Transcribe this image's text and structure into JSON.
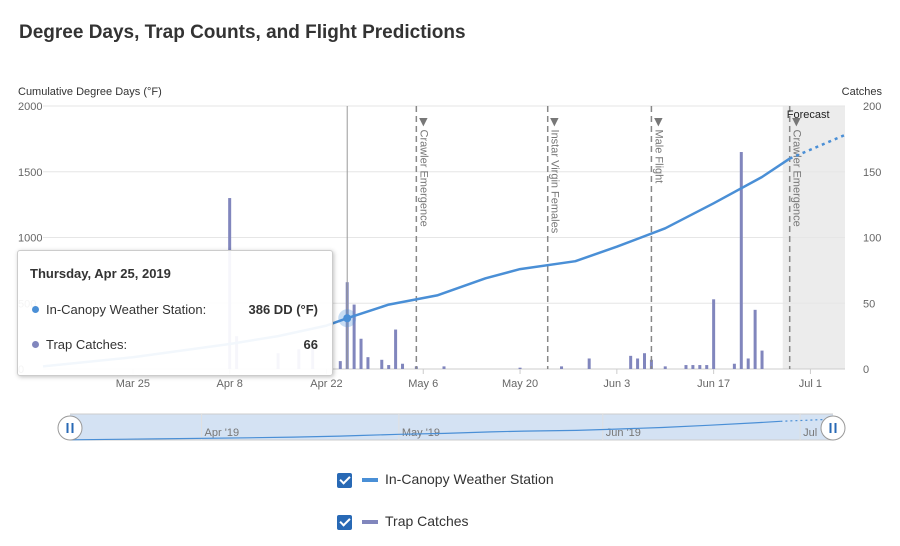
{
  "title": "Degree Days, Trap Counts, and Flight Predictions",
  "colors": {
    "dd_line": "#4a8fd6",
    "bars": "#8186bd",
    "forecast_band": "#ececec",
    "navigator_fill": "#d4e2f3",
    "checkbox": "#2869b5"
  },
  "chart_data": {
    "type": "line+bar",
    "left_axis_label": "Cumulative Degree Days (°F)",
    "right_axis_label": "Catches",
    "left_ylim": [
      0,
      2000
    ],
    "right_ylim": [
      0,
      200
    ],
    "left_ticks": [
      "0",
      "500",
      "1000",
      "1500",
      "2000"
    ],
    "right_ticks": [
      "0",
      "50",
      "100",
      "150",
      "200"
    ],
    "x_range": [
      "2019-03-12",
      "2019-07-06"
    ],
    "x_ticks": [
      {
        "date": "2019-03-25",
        "label": "Mar 25"
      },
      {
        "date": "2019-04-08",
        "label": "Apr 8"
      },
      {
        "date": "2019-04-22",
        "label": "Apr 22"
      },
      {
        "date": "2019-05-06",
        "label": "May 6"
      },
      {
        "date": "2019-05-20",
        "label": "May 20"
      },
      {
        "date": "2019-06-03",
        "label": "Jun 3"
      },
      {
        "date": "2019-06-17",
        "label": "Jun 17"
      },
      {
        "date": "2019-07-01",
        "label": "Jul 1"
      }
    ],
    "series": [
      {
        "name": "In-Canopy Weather Station",
        "kind": "line",
        "points": [
          [
            "2019-03-12",
            20
          ],
          [
            "2019-03-25",
            90
          ],
          [
            "2019-04-08",
            190
          ],
          [
            "2019-04-15",
            250
          ],
          [
            "2019-04-22",
            330
          ],
          [
            "2019-04-25",
            386
          ],
          [
            "2019-05-01",
            490
          ],
          [
            "2019-05-08",
            560
          ],
          [
            "2019-05-15",
            690
          ],
          [
            "2019-05-20",
            760
          ],
          [
            "2019-05-28",
            820
          ],
          [
            "2019-06-03",
            930
          ],
          [
            "2019-06-10",
            1070
          ],
          [
            "2019-06-17",
            1260
          ],
          [
            "2019-06-24",
            1460
          ],
          [
            "2019-06-28",
            1600
          ]
        ],
        "forecast_points": [
          [
            "2019-06-28",
            1600
          ],
          [
            "2019-07-06",
            1780
          ]
        ]
      },
      {
        "name": "Trap Catches",
        "kind": "bar",
        "points": [
          [
            "2019-04-08",
            130
          ],
          [
            "2019-04-09",
            25
          ],
          [
            "2019-04-15",
            12
          ],
          [
            "2019-04-18",
            15
          ],
          [
            "2019-04-20",
            20
          ],
          [
            "2019-04-24",
            6
          ],
          [
            "2019-04-25",
            66
          ],
          [
            "2019-04-26",
            49
          ],
          [
            "2019-04-27",
            23
          ],
          [
            "2019-04-28",
            9
          ],
          [
            "2019-04-30",
            7
          ],
          [
            "2019-05-01",
            3
          ],
          [
            "2019-05-02",
            30
          ],
          [
            "2019-05-03",
            4
          ],
          [
            "2019-05-05",
            2
          ],
          [
            "2019-05-09",
            2
          ],
          [
            "2019-05-20",
            1
          ],
          [
            "2019-05-26",
            2
          ],
          [
            "2019-05-30",
            8
          ],
          [
            "2019-06-05",
            10
          ],
          [
            "2019-06-06",
            8
          ],
          [
            "2019-06-07",
            12
          ],
          [
            "2019-06-08",
            7
          ],
          [
            "2019-06-10",
            2
          ],
          [
            "2019-06-13",
            3
          ],
          [
            "2019-06-14",
            3
          ],
          [
            "2019-06-15",
            3
          ],
          [
            "2019-06-16",
            3
          ],
          [
            "2019-06-17",
            53
          ],
          [
            "2019-06-20",
            4
          ],
          [
            "2019-06-21",
            165
          ],
          [
            "2019-06-22",
            8
          ],
          [
            "2019-06-23",
            45
          ],
          [
            "2019-06-24",
            14
          ]
        ]
      }
    ],
    "plot_lines": [
      {
        "date": "2019-05-05",
        "label": "Crawler Emergence"
      },
      {
        "date": "2019-05-24",
        "label": "Instar Virgin Females"
      },
      {
        "date": "2019-06-08",
        "label": "Male Flight"
      },
      {
        "date": "2019-06-28",
        "label": "Crawler Emergence"
      }
    ],
    "forecast": {
      "start": "2019-06-27",
      "end": "2019-07-06",
      "label": "Forecast"
    },
    "crosshair_date": "2019-04-25",
    "navigator": {
      "labels": [
        {
          "date": "2019-04-01",
          "label": "Apr '19"
        },
        {
          "date": "2019-05-01",
          "label": "May '19"
        },
        {
          "date": "2019-06-01",
          "label": "Jun '19"
        },
        {
          "date": "2019-07-01",
          "label": "Jul '19"
        }
      ]
    }
  },
  "tooltip": {
    "date": "Thursday, Apr 25, 2019",
    "rows": [
      {
        "name": "In-Canopy Weather Station:",
        "value": "386 DD (°F)",
        "color": "#4a8fd6"
      },
      {
        "name": "Trap Catches:",
        "value": "66",
        "color": "#8186bd"
      }
    ]
  },
  "legend": [
    {
      "label": "In-Canopy Weather Station",
      "checked": true,
      "color": "#4a8fd6"
    },
    {
      "label": "Trap Catches",
      "checked": true,
      "color": "#8186bd"
    }
  ]
}
